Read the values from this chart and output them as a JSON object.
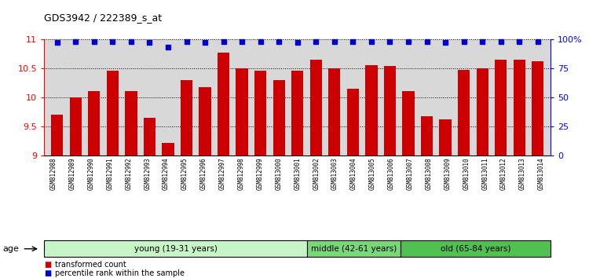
{
  "title": "GDS3942 / 222389_s_at",
  "samples": [
    "GSM812988",
    "GSM812989",
    "GSM812990",
    "GSM812991",
    "GSM812992",
    "GSM812993",
    "GSM812994",
    "GSM812995",
    "GSM812996",
    "GSM812997",
    "GSM812998",
    "GSM812999",
    "GSM813000",
    "GSM813001",
    "GSM813002",
    "GSM813003",
    "GSM813004",
    "GSM813005",
    "GSM813006",
    "GSM813007",
    "GSM813008",
    "GSM813009",
    "GSM813010",
    "GSM813011",
    "GSM813012",
    "GSM813013",
    "GSM813014"
  ],
  "bar_values": [
    9.7,
    10.0,
    10.1,
    10.45,
    10.1,
    9.65,
    9.22,
    10.3,
    10.17,
    10.77,
    10.5,
    10.45,
    10.3,
    10.45,
    10.65,
    10.5,
    10.15,
    10.55,
    10.53,
    10.1,
    9.68,
    9.62,
    10.47,
    10.5,
    10.65,
    10.65,
    10.62
  ],
  "percentile_values": [
    97,
    98,
    98,
    98,
    98,
    97,
    93,
    98,
    97,
    98,
    98,
    98,
    98,
    97,
    98,
    98,
    98,
    98,
    98,
    98,
    98,
    97,
    98,
    98,
    98,
    98,
    98
  ],
  "bar_color": "#cc0000",
  "percentile_color": "#0000cc",
  "ylim_left": [
    9.0,
    11.0
  ],
  "ylim_right": [
    0,
    100
  ],
  "yticks_left": [
    9.0,
    9.5,
    10.0,
    10.5,
    11.0
  ],
  "ytick_labels_left": [
    "9",
    "9.5",
    "10",
    "10.5",
    "11"
  ],
  "yticks_right": [
    0,
    25,
    50,
    75,
    100
  ],
  "ytick_labels_right": [
    "0",
    "25",
    "50",
    "75",
    "100%"
  ],
  "groups": [
    {
      "label": "young (19-31 years)",
      "start": 0,
      "end": 14,
      "color": "#c8f5c8"
    },
    {
      "label": "middle (42-61 years)",
      "start": 14,
      "end": 19,
      "color": "#78d878"
    },
    {
      "label": "old (65-84 years)",
      "start": 19,
      "end": 27,
      "color": "#50c050"
    }
  ],
  "age_label": "age",
  "legend_bar_label": "transformed count",
  "legend_pct_label": "percentile rank within the sample",
  "bg_color": "#d8d8d8",
  "plot_bg_color": "#ffffff",
  "fig_width": 7.5,
  "fig_height": 3.54
}
